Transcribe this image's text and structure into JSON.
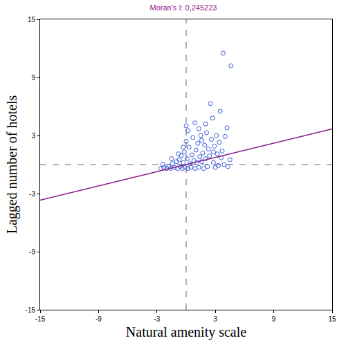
{
  "chart_data": {
    "type": "scatter",
    "title": "Moran's I: 0,245223",
    "x_label": "Natural amenity scale",
    "y_label": "Lagged number of hotels",
    "xlim": [
      -15,
      15
    ],
    "ylim": [
      -15,
      15
    ],
    "xticks": [
      -15,
      -9,
      -3,
      3,
      9,
      15
    ],
    "yticks": [
      -15,
      -9,
      -3,
      3,
      9,
      15
    ],
    "grid": false,
    "marker": "open-circle",
    "color": "#3b5bdb",
    "x": [
      -2.6,
      -2.3,
      -2.0,
      -1.8,
      -1.6,
      -1.4,
      -1.2,
      -1.0,
      -0.9,
      -0.7,
      -0.6,
      -0.5,
      -0.4,
      -0.3,
      -0.2,
      -0.1,
      0,
      0,
      0.1,
      0.2,
      0.3,
      0.4,
      0.5,
      0.6,
      0.7,
      0.8,
      0.9,
      1.0,
      1.1,
      1.2,
      1.3,
      1.4,
      1.5,
      1.6,
      1.7,
      1.8,
      1.9,
      2.0,
      2.1,
      2.2,
      2.3,
      2.4,
      2.5,
      2.6,
      2.7,
      2.8,
      2.9,
      3.0,
      3.1,
      3.2,
      3.3,
      3.4,
      3.5,
      3.6,
      3.7,
      3.8,
      3.9,
      4.0,
      4.2,
      4.3,
      4.6,
      4.5,
      -1.5,
      -0.8,
      0.2,
      0.9,
      1.3,
      2.0,
      -2.4,
      -0.3,
      1.6,
      2.8
    ],
    "y": [
      -0.4,
      -0.3,
      -0.4,
      -0.2,
      -0.4,
      0.1,
      -0.3,
      0.3,
      -0.4,
      0.5,
      -0.2,
      0.9,
      -0.4,
      0.2,
      1.3,
      -0.3,
      4.0,
      2.4,
      0.6,
      -0.4,
      1.8,
      0.1,
      -0.3,
      1.0,
      2.8,
      0.4,
      -0.4,
      1.5,
      0.2,
      2.2,
      -0.3,
      0.8,
      3.0,
      0.3,
      1.2,
      -0.4,
      2.0,
      0.6,
      3.3,
      -0.2,
      1.6,
      0.9,
      6.3,
      2.6,
      4.8,
      0.2,
      1.9,
      -0.3,
      3.0,
      1.1,
      -0.1,
      2.3,
      5.5,
      0.7,
      1.4,
      11.5,
      0.0,
      2.9,
      3.8,
      -0.2,
      10.2,
      0.5,
      0.6,
      1.1,
      3.5,
      4.3,
      3.7,
      4.2,
      0.0,
      1.8,
      2.5,
      1.3
    ],
    "fit_line": {
      "slope": 0.245223,
      "color": "#8b1a8b"
    },
    "reference_lines": {
      "x": 0,
      "y": 0
    }
  }
}
